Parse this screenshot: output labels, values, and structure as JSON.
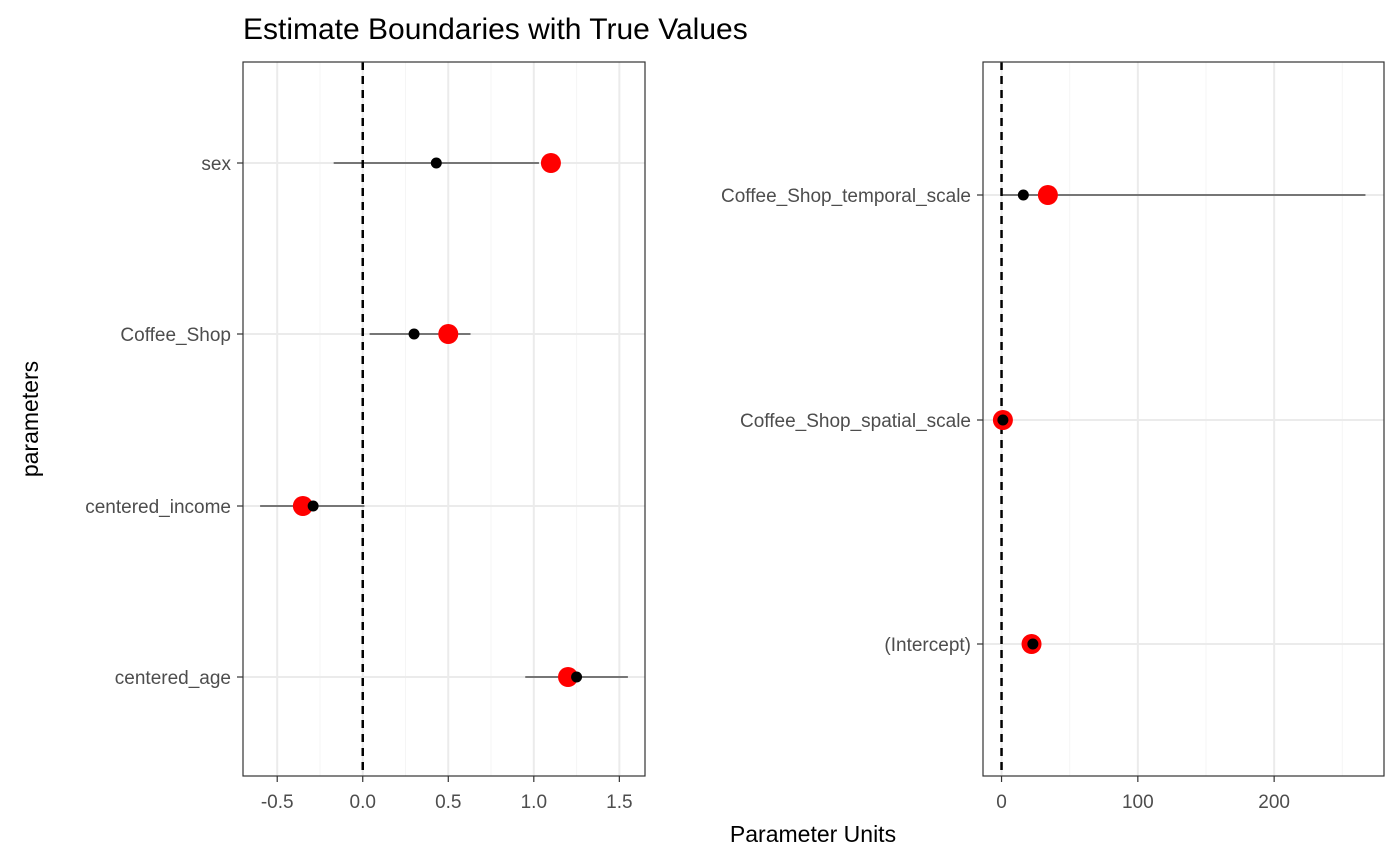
{
  "chart_data": {
    "type": "scatter",
    "title": "Estimate Boundaries with True Values",
    "xlabel": "Parameter Units",
    "ylabel": "parameters",
    "grid": true,
    "reference_line_x": 0,
    "colors": {
      "estimate": "#000000",
      "true_value": "#ff0000",
      "interval": "#000000",
      "grid_major": "#ebebeb",
      "grid_minor": "#f5f5f5"
    },
    "panels": [
      {
        "xlim": [
          -0.7,
          1.65
        ],
        "x_ticks": [
          -0.5,
          0.0,
          0.5,
          1.0,
          1.5
        ],
        "x_tick_labels": [
          "-0.5",
          "0.0",
          "0.5",
          "1.0",
          "1.5"
        ],
        "rows": [
          {
            "label": "sex",
            "estimate": 0.43,
            "lower": -0.17,
            "upper": 1.03,
            "true_value": 1.1
          },
          {
            "label": "Coffee_Shop",
            "estimate": 0.3,
            "lower": 0.04,
            "upper": 0.63,
            "true_value": 0.5
          },
          {
            "label": "centered_income",
            "estimate": -0.29,
            "lower": -0.6,
            "upper": 0.01,
            "true_value": -0.35
          },
          {
            "label": "centered_age",
            "estimate": 1.25,
            "lower": 0.95,
            "upper": 1.55,
            "true_value": 1.2
          }
        ]
      },
      {
        "xlim": [
          -13.6,
          280.6
        ],
        "x_ticks": [
          0,
          100,
          200
        ],
        "x_tick_labels": [
          "0",
          "100",
          "200"
        ],
        "rows": [
          {
            "label": "Coffee_Shop_temporal_scale",
            "estimate": 16,
            "lower": 0,
            "upper": 267,
            "true_value": 34
          },
          {
            "label": "Coffee_Shop_spatial_scale",
            "estimate": 1,
            "lower": 0,
            "upper": 2,
            "true_value": 1
          },
          {
            "label": "(Intercept)",
            "estimate": 23,
            "lower": 21,
            "upper": 25,
            "true_value": 22
          }
        ]
      }
    ]
  }
}
